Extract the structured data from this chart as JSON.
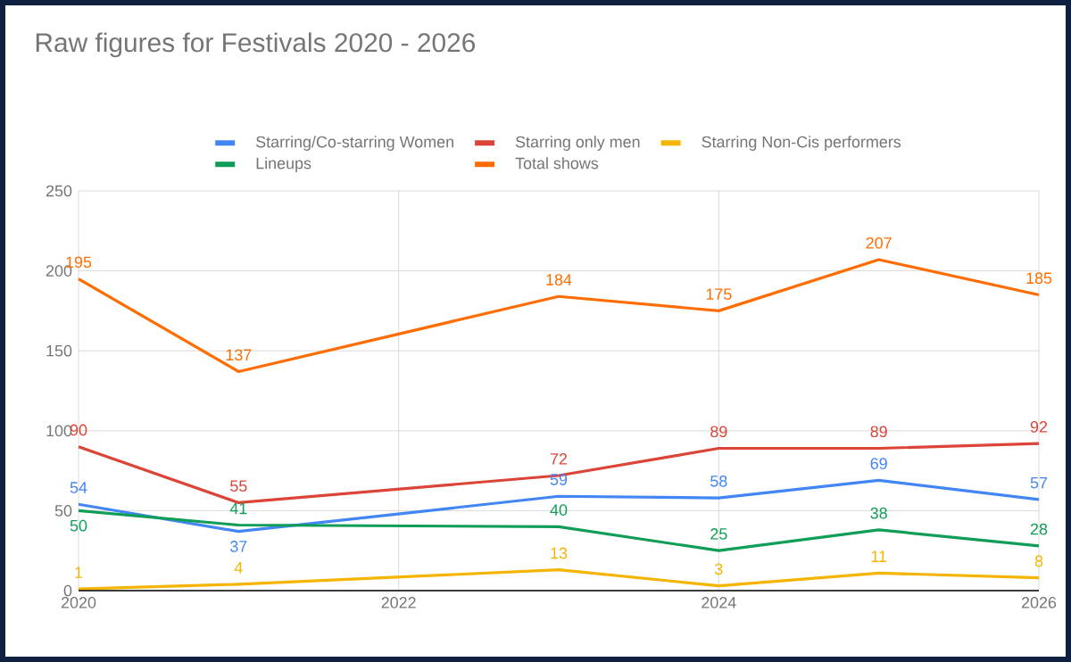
{
  "chart_data": {
    "type": "line",
    "title": "Raw figures for Festivals 2020 - 2026",
    "x": [
      2020,
      2021,
      2023,
      2024,
      2025,
      2026
    ],
    "series": [
      {
        "name": "Starring/Co-starring Women",
        "color": "#4285f4",
        "values": [
          54,
          37,
          59,
          58,
          69,
          57
        ]
      },
      {
        "name": "Starring only men",
        "color": "#db4437",
        "values": [
          90,
          55,
          72,
          89,
          89,
          92
        ]
      },
      {
        "name": "Starring Non-Cis performers",
        "color": "#f4b400",
        "values": [
          1,
          4,
          13,
          3,
          11,
          8
        ]
      },
      {
        "name": "Lineups",
        "color": "#0f9d58",
        "values": [
          50,
          41,
          40,
          25,
          38,
          28
        ]
      },
      {
        "name": "Total shows",
        "color": "#ff6d01",
        "values": [
          195,
          137,
          184,
          175,
          207,
          185
        ]
      }
    ],
    "xlim": [
      2020,
      2026
    ],
    "xticks": [
      2020,
      2022,
      2024,
      2026
    ],
    "ylim": [
      0,
      250
    ],
    "yticks": [
      0,
      50,
      100,
      150,
      200,
      250
    ],
    "grid": true,
    "legend": "top",
    "data_labels": true,
    "marker": "none",
    "line_style": "solid"
  }
}
